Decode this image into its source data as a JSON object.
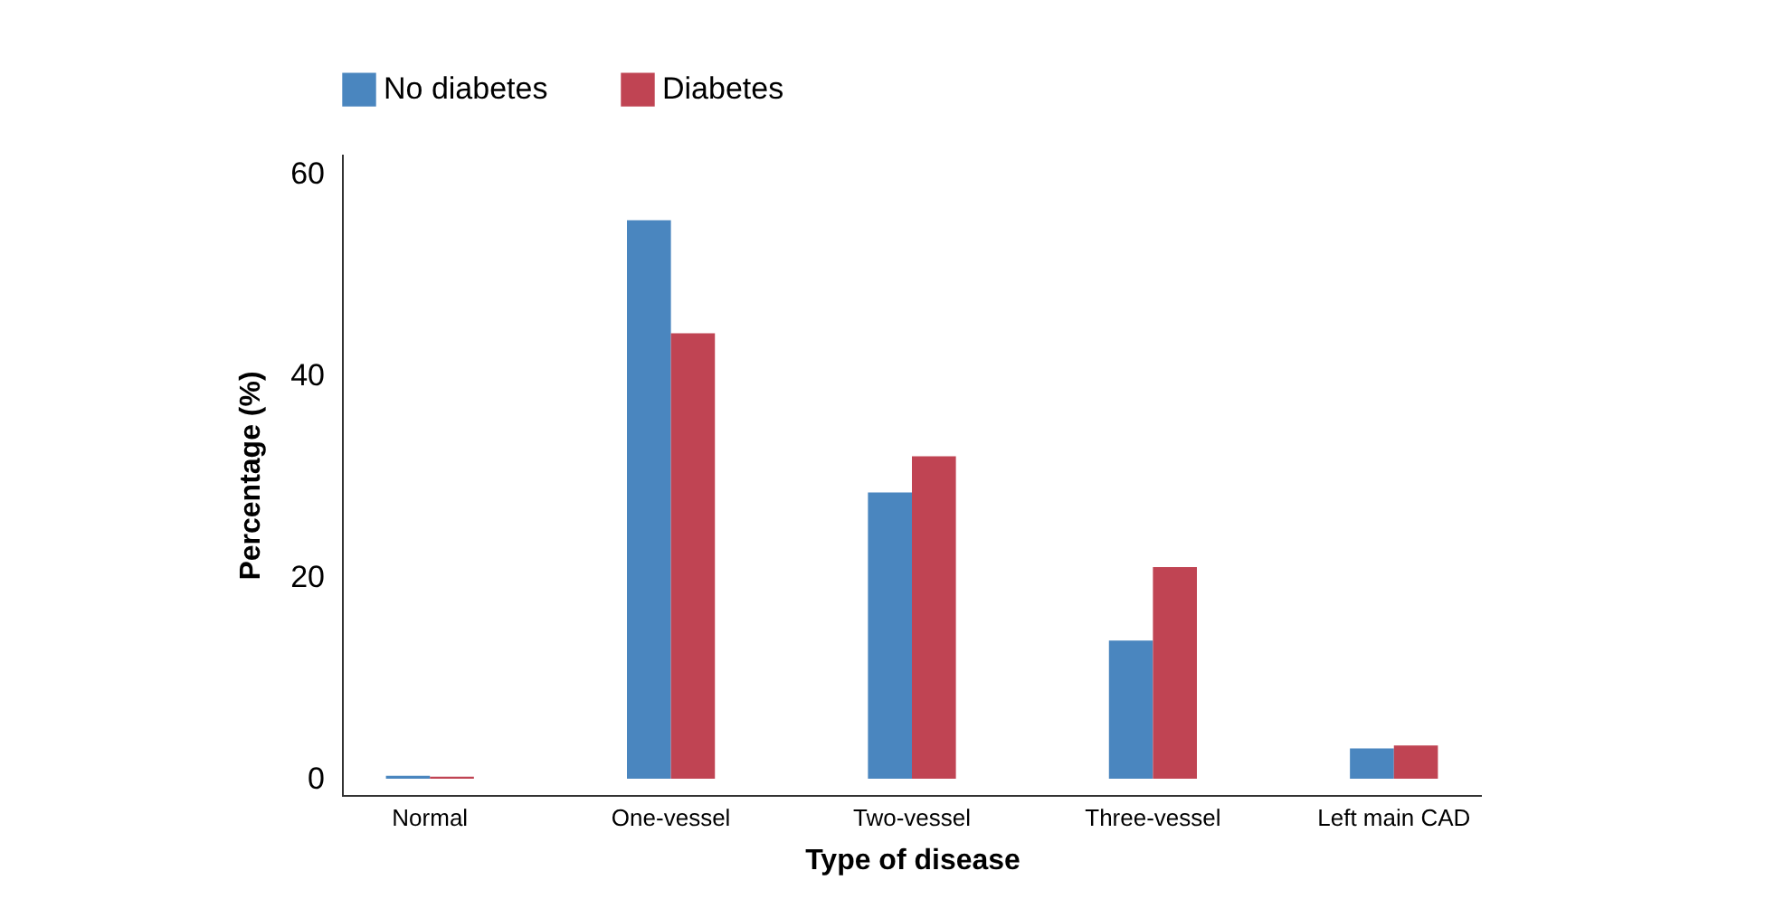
{
  "chart_data": {
    "type": "bar",
    "xlabel": "Type of disease",
    "ylabel": "Percentage (%)",
    "categories": [
      "Normal",
      "One-vessel",
      "Two-vessel",
      "Three-vessel",
      "Left main CAD"
    ],
    "series": [
      {
        "name": "No diabetes",
        "color": "#4a86bf",
        "values": [
          0.3,
          55.4,
          28.4,
          13.7,
          3.0
        ]
      },
      {
        "name": "Diabetes",
        "color": "#c04453",
        "values": [
          0.2,
          44.2,
          32.0,
          21.0,
          3.3
        ]
      }
    ],
    "ylim": [
      -1.7,
      62
    ],
    "yticks": [
      0,
      20,
      40,
      60
    ],
    "grid": false,
    "legend": "top left"
  }
}
